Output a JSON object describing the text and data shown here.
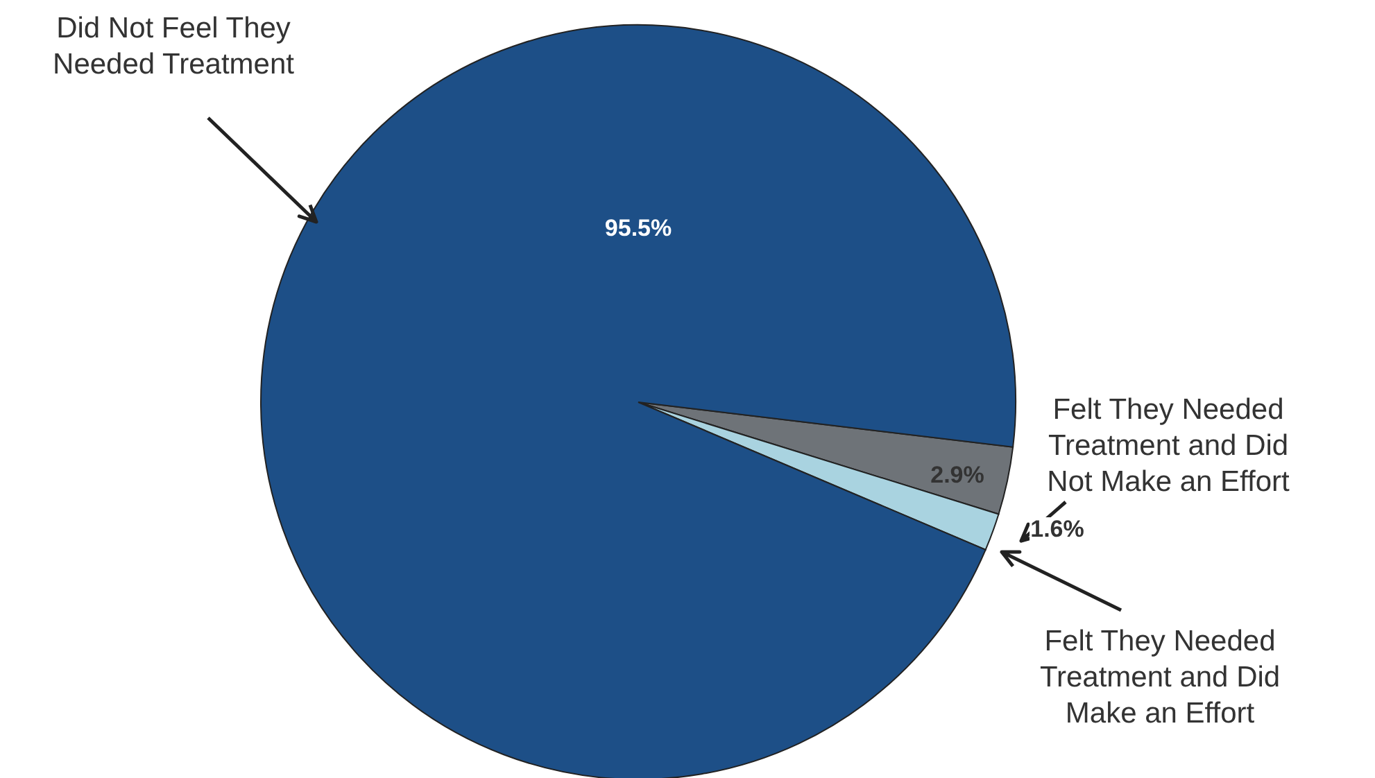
{
  "chart_data": {
    "type": "pie",
    "categories": [
      "Felt They Needed Treatment and Did Not Make an Effort",
      "Felt They Needed Treatment and Did Make an Effort",
      "Did Not Feel They Needed Treatment"
    ],
    "values": [
      2.9,
      1.6,
      95.5
    ],
    "colors": [
      "#6e7378",
      "#a9d3e0",
      "#1d4f87"
    ],
    "value_labels": [
      "2.9%",
      "1.6%",
      "95.5%"
    ]
  }
}
